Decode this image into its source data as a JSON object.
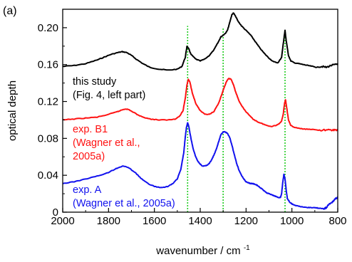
{
  "chart_data": {
    "type": "line",
    "panel_label": "(a)",
    "xlabel": "wavenumber / cm",
    "xlabel_superscript": "-1",
    "ylabel": "optical depth",
    "xlim": [
      2000,
      800
    ],
    "ylim": [
      0,
      0.22
    ],
    "x_reversed": true,
    "grid": false,
    "x_ticks": [
      2000,
      1800,
      1600,
      1400,
      1200,
      1000,
      800
    ],
    "x_tick_labels": [
      "2000",
      "1800",
      "1600",
      "1400",
      "1200",
      "1000",
      "800"
    ],
    "y_ticks": [
      0,
      0.04,
      0.08,
      0.12,
      0.16,
      0.2
    ],
    "y_tick_labels": [
      "0",
      "0.04",
      "0.08",
      "0.12",
      "0.16",
      "0.20"
    ],
    "reference_lines": {
      "color": "#22cc22",
      "style": "dotted",
      "x": [
        1455,
        1300,
        1030
      ],
      "y_top": [
        0.202,
        0.2,
        0.196
      ]
    },
    "series": [
      {
        "color": "#000000",
        "annotation": [
          "this study",
          "(Fig. 4, left part)"
        ],
        "x": [
          2000,
          1950,
          1900,
          1850,
          1820,
          1790,
          1760,
          1740,
          1720,
          1700,
          1680,
          1650,
          1620,
          1580,
          1540,
          1500,
          1480,
          1465,
          1458,
          1450,
          1440,
          1420,
          1400,
          1380,
          1360,
          1340,
          1320,
          1310,
          1300,
          1290,
          1280,
          1270,
          1262,
          1255,
          1245,
          1235,
          1220,
          1200,
          1180,
          1160,
          1140,
          1120,
          1100,
          1080,
          1060,
          1045,
          1035,
          1030,
          1025,
          1015,
          1005,
          990,
          970,
          950,
          930,
          910,
          890,
          870,
          850,
          830,
          810,
          800
        ],
        "y": [
          0.158,
          0.159,
          0.161,
          0.165,
          0.168,
          0.171,
          0.173,
          0.174,
          0.173,
          0.17,
          0.166,
          0.161,
          0.157,
          0.155,
          0.154,
          0.155,
          0.158,
          0.168,
          0.18,
          0.177,
          0.171,
          0.166,
          0.164,
          0.166,
          0.17,
          0.176,
          0.185,
          0.19,
          0.192,
          0.194,
          0.198,
          0.207,
          0.214,
          0.216,
          0.212,
          0.207,
          0.202,
          0.197,
          0.192,
          0.185,
          0.178,
          0.172,
          0.167,
          0.163,
          0.162,
          0.168,
          0.188,
          0.197,
          0.186,
          0.17,
          0.164,
          0.162,
          0.161,
          0.16,
          0.159,
          0.158,
          0.157,
          0.158,
          0.157,
          0.159,
          0.16,
          0.161
        ]
      },
      {
        "color": "#ff1111",
        "annotation": [
          "exp. B1",
          "(Wagner et al.,",
          "2005a)"
        ],
        "x": [
          2000,
          1950,
          1900,
          1850,
          1800,
          1760,
          1740,
          1725,
          1710,
          1690,
          1660,
          1620,
          1580,
          1540,
          1510,
          1490,
          1475,
          1465,
          1458,
          1452,
          1445,
          1435,
          1420,
          1400,
          1380,
          1360,
          1340,
          1320,
          1300,
          1285,
          1275,
          1265,
          1255,
          1245,
          1230,
          1210,
          1190,
          1170,
          1150,
          1130,
          1110,
          1090,
          1070,
          1055,
          1045,
          1038,
          1032,
          1028,
          1022,
          1015,
          1005,
          990,
          970,
          950,
          920,
          890,
          860,
          830,
          810,
          800
        ],
        "y": [
          0.1,
          0.101,
          0.102,
          0.103,
          0.106,
          0.109,
          0.111,
          0.112,
          0.111,
          0.108,
          0.104,
          0.101,
          0.1,
          0.1,
          0.101,
          0.104,
          0.11,
          0.124,
          0.138,
          0.144,
          0.141,
          0.13,
          0.118,
          0.11,
          0.106,
          0.106,
          0.109,
          0.118,
          0.132,
          0.142,
          0.145,
          0.144,
          0.138,
          0.13,
          0.12,
          0.112,
          0.106,
          0.101,
          0.098,
          0.096,
          0.094,
          0.093,
          0.094,
          0.096,
          0.099,
          0.106,
          0.118,
          0.122,
          0.112,
          0.1,
          0.094,
          0.092,
          0.091,
          0.09,
          0.09,
          0.089,
          0.089,
          0.089,
          0.089,
          0.089
        ]
      },
      {
        "color": "#1111ee",
        "annotation": [
          "exp. A",
          "(Wagner et al., 2005a)"
        ],
        "x": [
          2000,
          1950,
          1900,
          1850,
          1800,
          1770,
          1750,
          1735,
          1720,
          1700,
          1680,
          1660,
          1640,
          1620,
          1600,
          1580,
          1560,
          1540,
          1520,
          1500,
          1485,
          1472,
          1465,
          1460,
          1455,
          1450,
          1445,
          1438,
          1430,
          1420,
          1410,
          1400,
          1390,
          1380,
          1370,
          1360,
          1350,
          1340,
          1330,
          1320,
          1310,
          1300,
          1290,
          1280,
          1270,
          1260,
          1250,
          1240,
          1230,
          1220,
          1210,
          1200,
          1190,
          1180,
          1170,
          1160,
          1150,
          1140,
          1130,
          1120,
          1110,
          1100,
          1090,
          1080,
          1070,
          1060,
          1050,
          1045,
          1040,
          1035,
          1030,
          1025,
          1020,
          1010,
          1000,
          990,
          980,
          960,
          940,
          920,
          900,
          880,
          860,
          850,
          840,
          830,
          820,
          810,
          800
        ],
        "y": [
          0.031,
          0.033,
          0.036,
          0.039,
          0.043,
          0.047,
          0.049,
          0.05,
          0.049,
          0.046,
          0.042,
          0.037,
          0.033,
          0.03,
          0.028,
          0.027,
          0.027,
          0.028,
          0.031,
          0.036,
          0.046,
          0.064,
          0.082,
          0.092,
          0.097,
          0.093,
          0.086,
          0.077,
          0.068,
          0.06,
          0.055,
          0.052,
          0.05,
          0.05,
          0.051,
          0.053,
          0.057,
          0.062,
          0.068,
          0.076,
          0.084,
          0.087,
          0.087,
          0.085,
          0.08,
          0.071,
          0.061,
          0.052,
          0.045,
          0.04,
          0.036,
          0.033,
          0.032,
          0.031,
          0.031,
          0.03,
          0.029,
          0.027,
          0.025,
          0.023,
          0.021,
          0.02,
          0.019,
          0.018,
          0.017,
          0.016,
          0.016,
          0.02,
          0.032,
          0.041,
          0.036,
          0.024,
          0.015,
          0.011,
          0.009,
          0.008,
          0.007,
          0.006,
          0.005,
          0.005,
          0.005,
          0.004,
          0.004,
          0.005,
          0.008,
          0.01,
          0.012,
          0.015,
          0.016
        ]
      }
    ]
  }
}
